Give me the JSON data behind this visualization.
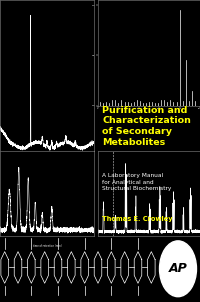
{
  "title_line1": "Purification and",
  "title_line2": "Characterization",
  "title_line3": "of Secondary",
  "title_line4": "Metabolites",
  "subtitle": "A Laboratory Manual\nfor Analytical and\nStructural Biochemistry",
  "author": "Thomas E. Crowley",
  "background_color": "#000000",
  "title_color": "#ffff00",
  "subtitle_color": "#ffffff",
  "author_color": "#ffff00",
  "title_fontsize": 6.8,
  "subtitle_fontsize": 4.2,
  "author_fontsize": 4.8,
  "panel_bg": "#000000",
  "panel_line": "#ffffff",
  "panel_spine": "#555555"
}
